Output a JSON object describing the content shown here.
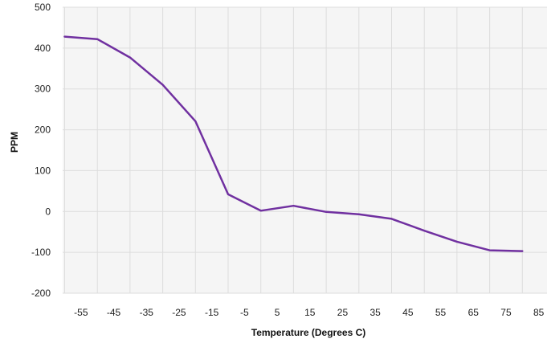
{
  "chart_data": {
    "type": "line",
    "xlabel": "Temperature (Degrees C)",
    "ylabel": "PPM",
    "xlim": [
      -60,
      85
    ],
    "ylim": [
      -200,
      500
    ],
    "x_ticks": [
      -55,
      -45,
      -35,
      -25,
      -15,
      -5,
      5,
      15,
      25,
      35,
      45,
      55,
      65,
      75,
      85
    ],
    "y_ticks": [
      500,
      400,
      300,
      200,
      100,
      0,
      -100,
      -200
    ],
    "x_tick_labels": [
      "-55",
      "-45",
      "-35",
      "-25",
      "-15",
      "-5",
      "5",
      "15",
      "25",
      "35",
      "45",
      "55",
      "65",
      "75",
      "85"
    ],
    "y_tick_labels": [
      "500",
      "400",
      "300",
      "200",
      "100",
      "0",
      "-100",
      "-200"
    ],
    "grid": true,
    "series": [
      {
        "color": "#7030a0",
        "x": [
          -60,
          -50,
          -40,
          -30,
          -20,
          -10,
          0,
          10,
          20,
          30,
          40,
          50,
          60,
          70,
          80
        ],
        "y": [
          428,
          422,
          377,
          310,
          221,
          42,
          2,
          14,
          -1,
          -7,
          -18,
          -47,
          -74,
          -95,
          -97
        ]
      }
    ]
  }
}
